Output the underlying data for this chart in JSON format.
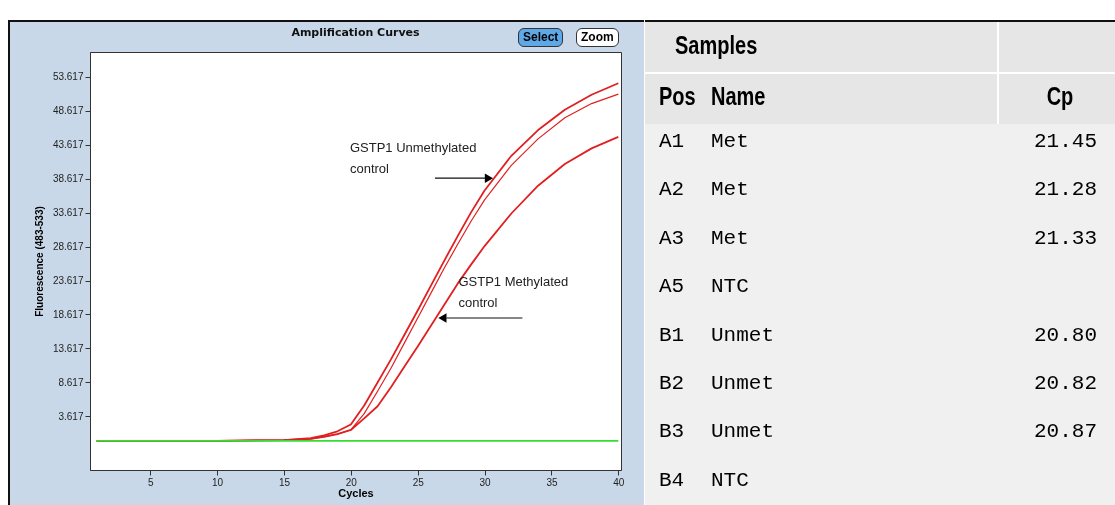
{
  "chart_data": [
    {
      "type": "line",
      "title": "Amplification Curves",
      "xlabel": "Cycles",
      "ylabel": "Fluorescence (483-533)",
      "x": [
        1,
        5,
        10,
        15,
        17,
        18,
        19,
        20,
        21,
        22,
        23,
        24,
        25,
        26,
        27,
        28,
        29,
        30,
        32,
        34,
        36,
        38,
        40
      ],
      "xlim": [
        0.5,
        40.2
      ],
      "xticks": [
        5,
        10,
        15,
        20,
        25,
        30,
        35,
        40
      ],
      "ylim": [
        -4.3,
        57.3
      ],
      "yticks": [
        3.617,
        8.617,
        13.617,
        18.617,
        23.617,
        28.617,
        33.617,
        38.617,
        43.617,
        48.617,
        53.617
      ],
      "series": [
        {
          "color": "#e02020",
          "values": [
            0,
            0,
            0,
            0.1,
            0.4,
            0.8,
            1.4,
            2.4,
            5.2,
            8.6,
            12.0,
            15.6,
            19.2,
            22.9,
            26.6,
            30.2,
            33.7,
            36.9,
            42.0,
            45.8,
            48.8,
            51.0,
            52.7
          ]
        },
        {
          "color": "#e02020",
          "values": [
            0,
            0,
            0,
            0.1,
            0.3,
            0.6,
            1.0,
            1.6,
            4.0,
            7.3,
            10.7,
            14.4,
            18.1,
            21.8,
            25.5,
            29.0,
            32.4,
            35.5,
            40.6,
            44.5,
            47.6,
            49.7,
            51.1
          ]
        },
        {
          "color": "#e02020",
          "values": [
            0,
            0,
            0,
            0.1,
            0.3,
            0.6,
            1.0,
            1.6,
            3.3,
            5.1,
            7.9,
            10.9,
            13.9,
            17.0,
            20.1,
            23.2,
            26.0,
            28.7,
            33.5,
            37.6,
            40.8,
            43.1,
            44.8
          ]
        },
        {
          "color": "#33dd33",
          "x": [
            1,
            40
          ],
          "values": [
            0,
            0
          ]
        }
      ],
      "annotations": [
        {
          "text": "GSTP1 Unmethylated control",
          "x": 30.7,
          "y": 38.7
        },
        {
          "text": "GSTP1 Methylated control",
          "x": 26.4,
          "y": 18.1
        },
        "Select",
        "Zoom"
      ]
    },
    {
      "type": "other",
      "title": "Samples",
      "annotations": [
        "Pos Name Cp",
        "A1 Met 21.45",
        "A2 Met 21.28",
        "A3 Met 21.33",
        "A5 NTC",
        "B1 Unmet 20.80",
        "B2 Unmet 20.82",
        "B3 Unmet 20.87",
        "B4 NTC"
      ]
    }
  ]
}
